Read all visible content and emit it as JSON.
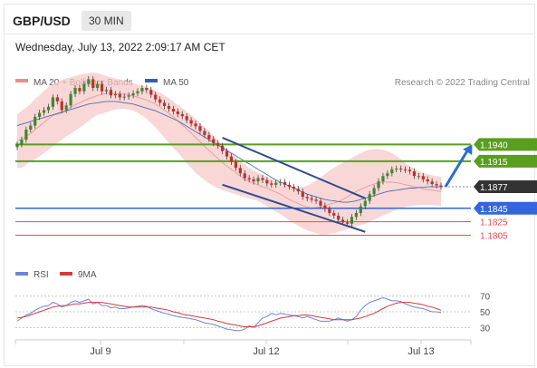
{
  "header": {
    "symbol": "GBP/USD",
    "timeframe": "30 MIN",
    "timestamp": "Wednesday, July 13, 2022 2:09:17 AM CET"
  },
  "legend": {
    "ma_bb": "MA 20 + Bollinger Bands",
    "ma50": "MA 50",
    "credit": "Research © 2022 Trading Central",
    "rsi": "RSI",
    "ma9": "9MA"
  },
  "colors": {
    "bollinger_fill": "#f7c9c9",
    "ma20": "#e8a0a0",
    "ma50": "#4a6fb0",
    "support_blue": "#3366dd",
    "support_red": "#e05050",
    "resistance_green": "#5a9e1e",
    "arrow": "#2a6fcc",
    "bull": "#3a8a2e",
    "bear": "#c0302a",
    "current": "#333333",
    "rsi_line": "#6f84d8",
    "rsi_ma": "#d43a3a"
  },
  "chart_data": [
    {
      "type": "candlestick",
      "title": "GBP/USD 30 MIN",
      "xlabel": "",
      "ylabel": "",
      "x_ticks": [
        "Jul 9",
        "Jul 12",
        "Jul 13"
      ],
      "ylim": [
        1.178,
        1.202
      ],
      "levels": [
        {
          "value": 1.194,
          "label": "1.1940",
          "kind": "resistance"
        },
        {
          "value": 1.1915,
          "label": "1.1915",
          "kind": "resistance"
        },
        {
          "value": 1.1877,
          "label": "1.1877",
          "kind": "current"
        },
        {
          "value": 1.1845,
          "label": "1.1845",
          "kind": "support"
        },
        {
          "value": 1.1825,
          "label": "1.1825",
          "kind": "support2"
        },
        {
          "value": 1.1805,
          "label": "1.1805",
          "kind": "support3"
        }
      ],
      "close": [
        1.194,
        1.1947,
        1.1962,
        1.1968,
        1.1981,
        1.1987,
        1.1991,
        1.1996,
        1.201,
        1.2004,
        1.1991,
        1.1998,
        1.2015,
        1.2024,
        1.2019,
        1.203,
        1.2037,
        1.2024,
        1.203,
        1.2019,
        1.2021,
        1.2013,
        1.2015,
        1.201,
        1.2011,
        1.2013,
        1.2016,
        1.2019,
        1.2024,
        1.2021,
        1.2014,
        1.2007,
        1.2002,
        1.1997,
        1.1993,
        1.1989,
        1.1985,
        1.1982,
        1.1976,
        1.1971,
        1.1967,
        1.196,
        1.1954,
        1.1948,
        1.1942,
        1.1938,
        1.193,
        1.1922,
        1.1914,
        1.1905,
        1.1897,
        1.189,
        1.1888,
        1.1885,
        1.189,
        1.1887,
        1.1882,
        1.188,
        1.1883,
        1.1884,
        1.188,
        1.1877,
        1.1874,
        1.187,
        1.1862,
        1.186,
        1.1858,
        1.1856,
        1.1849,
        1.1844,
        1.1838,
        1.1834,
        1.1828,
        1.1824,
        1.1822,
        1.1832,
        1.1838,
        1.1848,
        1.1856,
        1.1866,
        1.1875,
        1.1885,
        1.1893,
        1.1897,
        1.1903,
        1.1904,
        1.1903,
        1.1902,
        1.19,
        1.1893,
        1.1893,
        1.1888,
        1.1885,
        1.1881,
        1.1879,
        1.1877
      ],
      "ma20": [
        1.1946,
        1.1947,
        1.1952,
        1.1956,
        1.1962,
        1.1967,
        1.1973,
        1.1978,
        1.1983,
        1.1985,
        1.1987,
        1.199,
        1.1995,
        1.1999,
        1.2002,
        1.2005,
        1.2008,
        1.201,
        1.2013,
        1.2014,
        1.2016,
        1.2016,
        1.2016,
        1.2015,
        1.2015,
        1.2014,
        1.2012,
        1.201,
        1.2008,
        1.2006,
        1.2003,
        1.2,
        1.1996,
        1.1991,
        1.1986,
        1.1981,
        1.1975,
        1.1969,
        1.1963,
        1.1957,
        1.195,
        1.1944,
        1.1937,
        1.1931,
        1.1925,
        1.1919,
        1.1913,
        1.1908,
        1.1903,
        1.1898,
        1.1893,
        1.1888,
        1.1885,
        1.1882,
        1.188,
        1.1877,
        1.1875,
        1.1872,
        1.1869,
        1.1866,
        1.1862,
        1.1858,
        1.1855,
        1.1852,
        1.1849,
        1.1847,
        1.1845,
        1.1846,
        1.1847,
        1.1849,
        1.1851,
        1.1853,
        1.1855,
        1.1858,
        1.1862,
        1.1866,
        1.187,
        1.1873,
        1.1876,
        1.1879,
        1.1881,
        1.1883,
        1.1884,
        1.1884,
        1.1884,
        1.1883,
        1.1882,
        1.188,
        1.1879,
        1.1877,
        1.1876,
        1.1874,
        1.1873,
        1.1872,
        1.1871,
        1.187
      ],
      "bb_upper": [
        1.1985,
        1.199,
        1.1995,
        1.2,
        1.2008,
        1.2013,
        1.202,
        1.2025,
        1.203,
        1.2033,
        1.2036,
        1.2038,
        1.204,
        1.2042,
        1.2044,
        1.2045,
        1.2046,
        1.2047,
        1.2046,
        1.2044,
        1.2042,
        1.204,
        1.2038,
        1.2037,
        1.2035,
        1.2033,
        1.2031,
        1.2029,
        1.2027,
        1.2025,
        1.2023,
        1.202,
        1.2017,
        1.2013,
        1.2009,
        1.2004,
        1.1999,
        1.1994,
        1.1989,
        1.1984,
        1.1978,
        1.1972,
        1.1966,
        1.196,
        1.1953,
        1.1946,
        1.1939,
        1.1933,
        1.1927,
        1.1921,
        1.1915,
        1.191,
        1.1905,
        1.1901,
        1.1898,
        1.1895,
        1.1892,
        1.1889,
        1.1886,
        1.1883,
        1.188,
        1.1878,
        1.1877,
        1.1876,
        1.1877,
        1.1879,
        1.1882,
        1.1886,
        1.1891,
        1.1896,
        1.1901,
        1.1905,
        1.1909,
        1.1913,
        1.1916,
        1.192,
        1.1924,
        1.1927,
        1.193,
        1.1932,
        1.1933,
        1.1933,
        1.1932,
        1.193,
        1.1927,
        1.1923,
        1.1918,
        1.1912,
        1.1908,
        1.1904,
        1.19,
        1.1898,
        1.1896,
        1.1894,
        1.1893,
        1.1892
      ],
      "bb_lower": [
        1.1905,
        1.1905,
        1.191,
        1.1915,
        1.1918,
        1.1922,
        1.1927,
        1.1932,
        1.1937,
        1.1942,
        1.1947,
        1.1952,
        1.1956,
        1.196,
        1.1965,
        1.197,
        1.1975,
        1.198,
        1.1984,
        1.1986,
        1.1988,
        1.199,
        1.1992,
        1.1993,
        1.1993,
        1.1992,
        1.199,
        1.1987,
        1.1983,
        1.1978,
        1.1972,
        1.1965,
        1.1958,
        1.195,
        1.1942,
        1.1935,
        1.1928,
        1.192,
        1.1912,
        1.1905,
        1.1898,
        1.1892,
        1.1887,
        1.1882,
        1.1878,
        1.1875,
        1.1872,
        1.187,
        1.1868,
        1.1866,
        1.1864,
        1.1862,
        1.186,
        1.1858,
        1.1856,
        1.1852,
        1.1848,
        1.1844,
        1.184,
        1.1836,
        1.1832,
        1.1827,
        1.1823,
        1.1819,
        1.1815,
        1.1812,
        1.181,
        1.1808,
        1.1806,
        1.1806,
        1.1807,
        1.1808,
        1.181,
        1.1812,
        1.1814,
        1.1816,
        1.1818,
        1.182,
        1.1822,
        1.1825,
        1.1828,
        1.1831,
        1.1834,
        1.1837,
        1.184,
        1.1843,
        1.1845,
        1.1847,
        1.1848,
        1.1849,
        1.185,
        1.185,
        1.185,
        1.185,
        1.1849,
        1.1848
      ],
      "ma50": [
        1.1968,
        1.197,
        1.1972,
        1.1974,
        1.1976,
        1.1978,
        1.198,
        1.1982,
        1.1984,
        1.1986,
        1.1988,
        1.199,
        1.1992,
        1.1994,
        1.1996,
        1.1998,
        1.2,
        1.2001,
        1.2002,
        1.2003,
        1.2004,
        1.2004,
        1.2004,
        1.2003,
        1.2002,
        1.2001,
        1.2,
        1.1998,
        1.1996,
        1.1994,
        1.1992,
        1.199,
        1.1987,
        1.1984,
        1.1981,
        1.1978,
        1.1975,
        1.1971,
        1.1967,
        1.1963,
        1.1959,
        1.1955,
        1.1951,
        1.1947,
        1.1943,
        1.1939,
        1.1935,
        1.1931,
        1.1927,
        1.1923,
        1.1919,
        1.1915,
        1.1911,
        1.1907,
        1.1903,
        1.1899,
        1.1895,
        1.1891,
        1.1887,
        1.1884,
        1.1881,
        1.1878,
        1.1875,
        1.1872,
        1.1869,
        1.1866,
        1.1864,
        1.1862,
        1.186,
        1.1858,
        1.1857,
        1.1856,
        1.1855,
        1.1854,
        1.1854,
        1.1855,
        1.1856,
        1.1858,
        1.186,
        1.1862,
        1.1864,
        1.1866,
        1.1868,
        1.187,
        1.1871,
        1.1872,
        1.1873,
        1.1874,
        1.1875,
        1.1875,
        1.1876,
        1.1876,
        1.1877,
        1.1877,
        1.1877,
        1.1877
      ],
      "trendlines": [
        {
          "from": [
            46,
            1.195
          ],
          "to": [
            78,
            1.186
          ]
        },
        {
          "from": [
            46,
            1.188
          ],
          "to": [
            78,
            1.181
          ]
        }
      ],
      "projection": {
        "from": [
          96,
          1.1877
        ],
        "to": [
          102,
          1.194
        ]
      }
    },
    {
      "type": "line",
      "title": "RSI",
      "ylim": [
        20,
        80
      ],
      "y_ticks": [
        70,
        50,
        30
      ],
      "x_ticks": [
        "Jul 9",
        "Jul 12",
        "Jul 13"
      ],
      "series": [
        {
          "name": "RSI",
          "values": [
            38,
            42,
            46,
            48,
            52,
            55,
            57,
            58,
            62,
            60,
            56,
            58,
            62,
            64,
            62,
            64,
            66,
            60,
            62,
            58,
            58,
            55,
            56,
            54,
            54,
            55,
            56,
            57,
            58,
            57,
            54,
            52,
            50,
            48,
            47,
            45,
            44,
            43,
            42,
            41,
            40,
            38,
            36,
            35,
            34,
            32,
            30,
            28,
            27,
            26,
            26,
            28,
            32,
            30,
            36,
            42,
            44,
            48,
            46,
            48,
            47,
            46,
            45,
            44,
            42,
            44,
            42,
            40,
            38,
            38,
            38,
            40,
            42,
            40,
            38,
            40,
            44,
            52,
            58,
            62,
            64,
            66,
            68,
            66,
            64,
            64,
            63,
            60,
            58,
            56,
            55,
            54,
            52,
            50,
            50,
            49
          ]
        },
        {
          "name": "9MA",
          "values": [
            42,
            43,
            44,
            46,
            48,
            50,
            52,
            54,
            56,
            57,
            58,
            58,
            59,
            60,
            60,
            61,
            62,
            62,
            62,
            62,
            61,
            60,
            59,
            58,
            57,
            56,
            56,
            56,
            56,
            56,
            56,
            55,
            54,
            53,
            52,
            50,
            49,
            47,
            46,
            45,
            44,
            43,
            42,
            41,
            40,
            38,
            37,
            35,
            34,
            33,
            32,
            31,
            31,
            31,
            32,
            34,
            36,
            38,
            40,
            42,
            43,
            44,
            45,
            45,
            46,
            46,
            45,
            44,
            43,
            42,
            41,
            40,
            40,
            40,
            40,
            40,
            41,
            42,
            44,
            46,
            48,
            51,
            54,
            57,
            59,
            61,
            62,
            62,
            62,
            61,
            60,
            59,
            57,
            56,
            54,
            52
          ]
        }
      ]
    }
  ]
}
